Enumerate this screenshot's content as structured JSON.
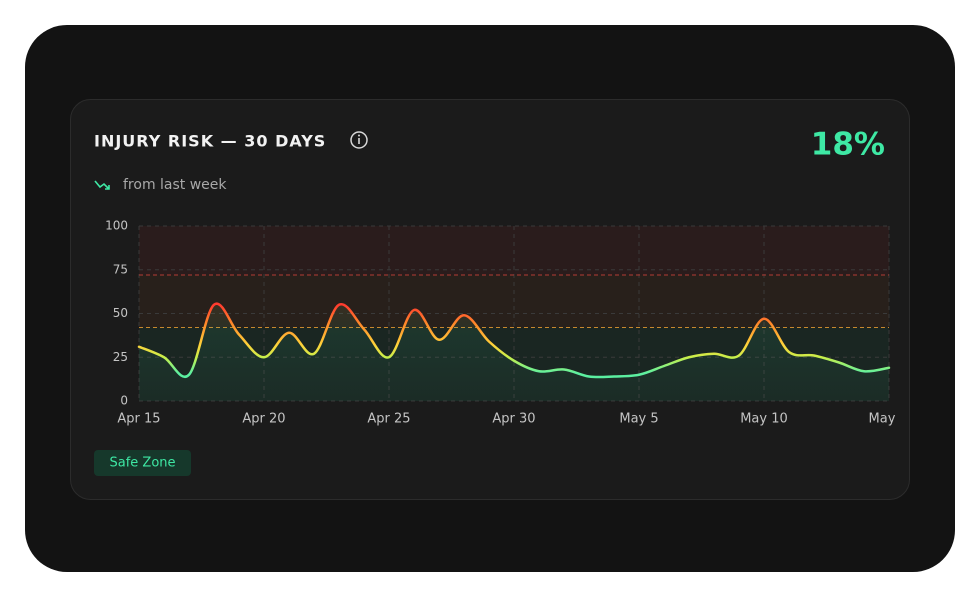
{
  "header": {
    "title": "INJURY RISK — 30 DAYS",
    "value": "18%",
    "trend": "from last week"
  },
  "chart_data": {
    "type": "line",
    "categories": [
      "Apr 15",
      null,
      null,
      null,
      null,
      "Apr 20",
      null,
      null,
      null,
      null,
      "Apr 25",
      null,
      null,
      null,
      null,
      "Apr 30",
      null,
      null,
      null,
      null,
      "May 5",
      null,
      null,
      null,
      null,
      "May 10",
      null,
      null,
      null,
      null,
      "May"
    ],
    "values": [
      31,
      25,
      15,
      55,
      38,
      25,
      39,
      27,
      55,
      41,
      25,
      52,
      35,
      49,
      34,
      23,
      17,
      18,
      14,
      14,
      15,
      20,
      25,
      27,
      26,
      47,
      28,
      26,
      22,
      17,
      19
    ],
    "ylim": [
      0,
      100
    ],
    "yticks": [
      0,
      25,
      50,
      75,
      100
    ],
    "thresholds": [
      42,
      72
    ],
    "grid": true,
    "badge": "Safe Zone"
  }
}
